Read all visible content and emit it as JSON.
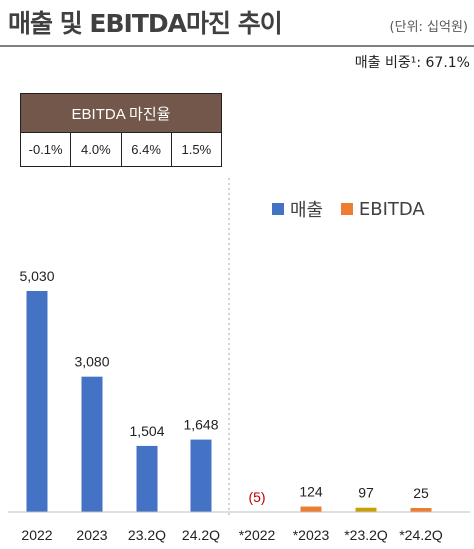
{
  "header": {
    "title": "매출 및 EBITDA마진 추이",
    "unit": "(단위: 십억원)",
    "share_text": "매출 비중¹: 67.1%"
  },
  "margin_table": {
    "title": "EBITDA 마진율",
    "values": [
      "-0.1%",
      "4.0%",
      "6.4%",
      "1.5%"
    ]
  },
  "colors": {
    "revenue": "#4472c4",
    "ebitda": "#ed7d31",
    "ebitda_alt": "#c8a000",
    "negative_label": "#c00000"
  },
  "chart_data": {
    "type": "bar",
    "legend": {
      "position": "top-right",
      "entries": [
        "매출",
        "EBITDA"
      ]
    },
    "series": [
      {
        "name": "매출",
        "categories": [
          "2022",
          "2023",
          "23.2Q",
          "24.2Q"
        ],
        "values": [
          5030,
          3080,
          1504,
          1648
        ],
        "labels": [
          "5,030",
          "3,080",
          "1,504",
          "1,648"
        ]
      },
      {
        "name": "EBITDA",
        "categories": [
          "*2022",
          "*2023",
          "*23.2Q",
          "*24.2Q"
        ],
        "values": [
          -5,
          124,
          97,
          25
        ],
        "labels": [
          "(5)",
          "124",
          "97",
          "25"
        ]
      }
    ],
    "ylim": [
      0,
      5030
    ],
    "grid": false
  }
}
